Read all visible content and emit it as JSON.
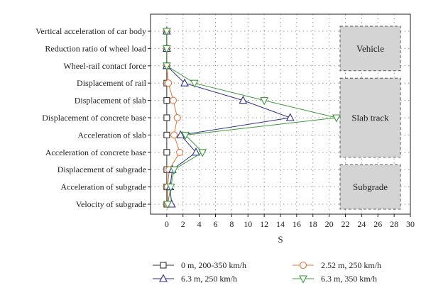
{
  "chart_data": {
    "type": "line",
    "orientation": "horizontal",
    "xlabel": "S",
    "xlim": [
      -2,
      30
    ],
    "xticks": [
      0,
      2,
      4,
      6,
      8,
      10,
      12,
      14,
      16,
      18,
      20,
      22,
      24,
      26,
      28,
      30
    ],
    "grid": true,
    "legend_position": "bottom",
    "categories": [
      "Vertical acceleration of car body",
      "Reduction ratio of wheel load",
      "Wheel-rail contact force",
      "Displacement of rail",
      "Displacement of slab",
      "Displacement of concrete base",
      "Acceleration of slab",
      "Acceleration of concrete base",
      "Displacement of subgrade",
      "Acceleration of subgrade",
      "Velocity of subgrade"
    ],
    "series": [
      {
        "name": "0 m, 200-350 km/h",
        "marker": "square",
        "color": "#333333",
        "values": [
          0,
          0,
          0,
          0,
          0,
          0,
          0,
          0,
          0,
          0,
          0
        ]
      },
      {
        "name": "2.52 m, 250 km/h",
        "marker": "circle",
        "color": "#e8733a",
        "values": [
          0,
          0,
          0,
          0.2,
          0.8,
          1.3,
          0.9,
          1.6,
          0.3,
          0.1,
          0.1
        ]
      },
      {
        "name": "6.3 m, 250 km/h",
        "marker": "triangle-up",
        "color": "#2e2f8a",
        "values": [
          0,
          0,
          0,
          2.2,
          9.4,
          15.2,
          1.7,
          3.6,
          0.7,
          0.4,
          0.6
        ]
      },
      {
        "name": "6.3 m, 350 km/h",
        "marker": "triangle-down",
        "color": "#3d9a3d",
        "values": [
          0,
          0,
          0,
          3.4,
          12.0,
          20.9,
          2.3,
          4.4,
          0.9,
          0.5,
          0.1
        ]
      }
    ],
    "groups": [
      {
        "label": "Vehicle",
        "from": 0,
        "to": 2
      },
      {
        "label": "Slab track",
        "from": 3,
        "to": 7
      },
      {
        "label": "Subgrade",
        "from": 8,
        "to": 10
      }
    ]
  }
}
